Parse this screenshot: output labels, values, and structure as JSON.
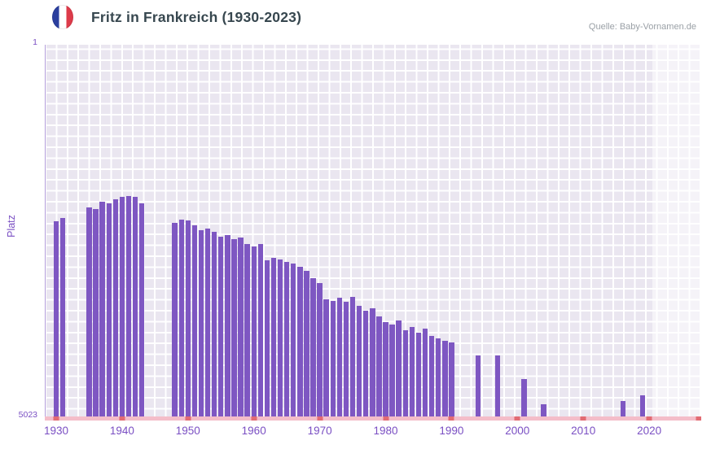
{
  "header": {
    "title": "Fritz in Frankreich (1930-2023)",
    "source": "Quelle: Baby-Vornamen.de",
    "flag_icon": "france-flag-icon"
  },
  "y_axis": {
    "label": "Platz",
    "top_tick": "1",
    "bottom_tick": "5023"
  },
  "colors": {
    "bar": "#7e57c2",
    "axis_text": "#7a4fc3",
    "title": "#37474f",
    "source": "#9aa0a6",
    "plot_background": "#eae6f0",
    "gridline": "#ffffff",
    "baseline": "#f4bdc9",
    "axis_mark": "#e26b73",
    "flag_blue": "#2b3f9e",
    "flag_red": "#dd3b4a"
  },
  "chart_data": {
    "type": "bar",
    "title": "Fritz in Frankreich (1930-2023)",
    "xlabel": "",
    "ylabel": "Platz",
    "y_axis_inverted": true,
    "ylim": [
      1,
      5023
    ],
    "grid": true,
    "legend": "none",
    "bar_color": "#7e57c2",
    "x_ticks": [
      1930,
      1940,
      1950,
      1960,
      1970,
      1980,
      1990,
      2000,
      2010,
      2020
    ],
    "highlight_band": {
      "from_year": 2021,
      "to_year": 2023
    },
    "years": [
      1930,
      1931,
      1932,
      1933,
      1934,
      1935,
      1936,
      1937,
      1938,
      1939,
      1940,
      1941,
      1942,
      1943,
      1944,
      1945,
      1946,
      1947,
      1948,
      1949,
      1950,
      1951,
      1952,
      1953,
      1954,
      1955,
      1956,
      1957,
      1958,
      1959,
      1960,
      1961,
      1962,
      1963,
      1964,
      1965,
      1966,
      1967,
      1968,
      1969,
      1970,
      1971,
      1972,
      1973,
      1974,
      1975,
      1976,
      1977,
      1978,
      1979,
      1980,
      1981,
      1982,
      1983,
      1984,
      1985,
      1986,
      1987,
      1988,
      1989,
      1990,
      1991,
      1992,
      1993,
      1994,
      1995,
      1996,
      1997,
      1998,
      1999,
      2000,
      2001,
      2002,
      2003,
      2004,
      2005,
      2006,
      2007,
      2008,
      2009,
      2010,
      2011,
      2012,
      2013,
      2014,
      2015,
      2016,
      2017,
      2018,
      2019,
      2020,
      2021,
      2022,
      2023
    ],
    "values": [
      2385,
      2340,
      null,
      null,
      null,
      2200,
      2220,
      2120,
      2140,
      2090,
      2055,
      2045,
      2055,
      2145,
      null,
      null,
      null,
      null,
      2410,
      2365,
      2375,
      2440,
      2505,
      2485,
      2530,
      2595,
      2570,
      2625,
      2605,
      2695,
      2725,
      2695,
      2915,
      2880,
      2900,
      2935,
      2955,
      3000,
      3055,
      3155,
      3220,
      3440,
      3465,
      3420,
      3475,
      3410,
      3530,
      3595,
      3560,
      3670,
      3750,
      3780,
      3725,
      3860,
      3815,
      3890,
      3835,
      3935,
      3970,
      4000,
      4025,
      null,
      null,
      null,
      4200,
      null,
      null,
      4200,
      null,
      null,
      null,
      4520,
      null,
      null,
      4860,
      null,
      null,
      null,
      null,
      null,
      null,
      null,
      null,
      null,
      null,
      null,
      4815,
      null,
      null,
      4740,
      null,
      null,
      null,
      null
    ]
  }
}
